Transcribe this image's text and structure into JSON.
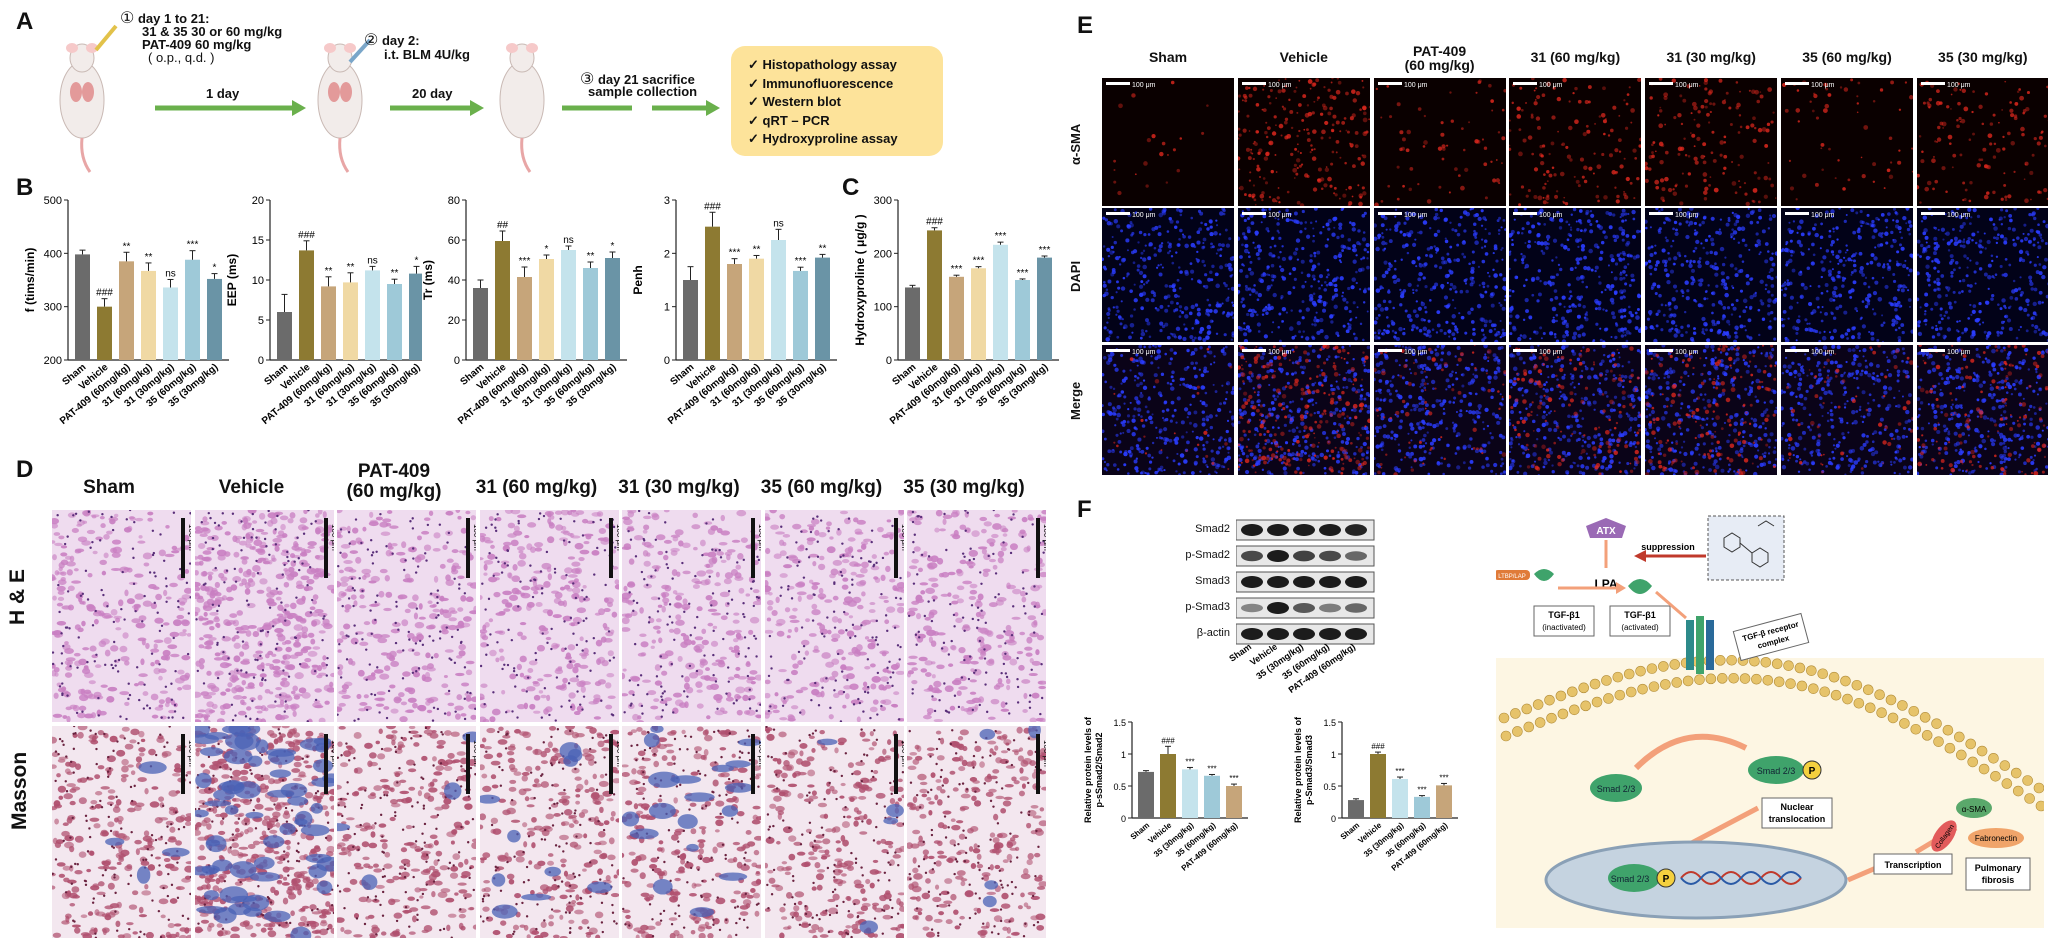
{
  "panel_letters": {
    "A": "A",
    "B": "B",
    "C": "C",
    "D": "D",
    "E": "E",
    "F": "F"
  },
  "panel_a": {
    "step1_num": "①",
    "step1_lines": [
      "day 1 to 21:",
      "31 & 35  30 or 60 mg/kg",
      "PAT-409 60 mg/kg",
      "( o.p., q.d. )"
    ],
    "step2_num": "②",
    "step2_lines": [
      "day 2:",
      "i.t. BLM 4U/kg"
    ],
    "step3_num": "③",
    "step3_lines": [
      "day 21 sacrifice",
      "sample collection"
    ],
    "arrow1": "1 day",
    "arrow2": "20 day",
    "assays": [
      "✓ Histopathology assay",
      "✓ Immunofluorescence",
      "✓ Western blot",
      "✓ qRT – PCR",
      "✓ Hydroxyproline assay"
    ],
    "colors": {
      "arrow": "#6ab04c",
      "box": "#fde39a",
      "mouse": "#f2ecea",
      "mouse_outline": "#c9b9b4",
      "tail": "#e8a6a6"
    }
  },
  "groups": [
    "Sham",
    "Vehicle",
    "PAT-409 (60mg/kg)",
    "31 (60mg/kg)",
    "31 (30mg/kg)",
    "35 (60mg/kg)",
    "35 (30mg/kg)"
  ],
  "group_colors": [
    "#6b6b6b",
    "#8d7a32",
    "#c6a57a",
    "#f0d9a4",
    "#c4e3ec",
    "#9ec9d8",
    "#6a94a6"
  ],
  "chart_data": [
    {
      "type": "bar",
      "panel": "B",
      "ylabel": "f (tims/min)",
      "ylim": [
        200,
        500
      ],
      "yticks": [
        200,
        300,
        400,
        500
      ],
      "values": [
        398,
        300,
        385,
        367,
        336,
        388,
        352
      ],
      "errors": [
        8,
        15,
        17,
        15,
        15,
        17,
        10
      ],
      "annotations": [
        "",
        "###",
        "**",
        "**",
        "ns",
        "***",
        "*"
      ]
    },
    {
      "type": "bar",
      "panel": "B",
      "ylabel": "EEP (ms)",
      "ylim": [
        0,
        20
      ],
      "yticks": [
        0,
        5,
        10,
        15,
        20
      ],
      "values": [
        6,
        13.7,
        9.2,
        9.7,
        11.2,
        9.5,
        10.8
      ],
      "errors": [
        2.2,
        1.2,
        1.2,
        1.2,
        0.5,
        0.6,
        0.9
      ],
      "annotations": [
        "",
        "###",
        "**",
        "**",
        "ns",
        "**",
        "*"
      ]
    },
    {
      "type": "bar",
      "panel": "B",
      "ylabel": "Tr (ms)",
      "ylim": [
        0,
        80
      ],
      "yticks": [
        0,
        20,
        40,
        60,
        80
      ],
      "values": [
        36,
        59.5,
        41.5,
        50.5,
        55,
        46,
        51
      ],
      "errors": [
        4,
        5,
        5,
        2,
        2,
        3,
        3
      ],
      "annotations": [
        "",
        "##",
        "***",
        "*",
        "ns",
        "**",
        "*"
      ]
    },
    {
      "type": "bar",
      "panel": "B",
      "ylabel": "Penh",
      "ylim": [
        0,
        3
      ],
      "yticks": [
        0,
        1,
        2,
        3
      ],
      "values": [
        1.5,
        2.5,
        1.8,
        1.9,
        2.25,
        1.67,
        1.92
      ],
      "errors": [
        0.25,
        0.27,
        0.1,
        0.06,
        0.2,
        0.07,
        0.06
      ],
      "annotations": [
        "",
        "###",
        "***",
        "**",
        "ns",
        "***",
        "**"
      ]
    },
    {
      "type": "bar",
      "panel": "C",
      "ylabel": "Hydroxyproline ( μg/g )",
      "ylim": [
        0,
        300
      ],
      "yticks": [
        0,
        100,
        200,
        300
      ],
      "values": [
        136,
        243,
        156,
        172,
        216,
        150,
        192
      ],
      "errors": [
        4,
        5,
        3,
        3,
        5,
        2,
        3
      ],
      "annotations": [
        "",
        "###",
        "***",
        "***",
        "***",
        "***",
        "***"
      ]
    },
    {
      "type": "bar",
      "panel": "F",
      "ylabel": "Relative protein levels of p-sSmad2/Smad2",
      "categories": [
        "Sham",
        "Vehicle",
        "35 (30mg/kg)",
        "35 (60mg/kg)",
        "PAT-409 (60mg/kg)"
      ],
      "ylim": [
        0,
        1.5
      ],
      "yticks": [
        0,
        0.5,
        1.0,
        1.5
      ],
      "values": [
        0.72,
        1.0,
        0.76,
        0.66,
        0.5
      ],
      "errors": [
        0.02,
        0.12,
        0.03,
        0.02,
        0.03
      ],
      "annotations": [
        "",
        "###",
        "***",
        "***",
        "***"
      ],
      "colors": [
        "#6b6b6b",
        "#8d7a32",
        "#c4e3ec",
        "#9ec9d8",
        "#c6a57a"
      ]
    },
    {
      "type": "bar",
      "panel": "F",
      "ylabel": "Relative protein levels of p-Smad3/Smad3",
      "categories": [
        "Sham",
        "Vehicle",
        "35 (30mg/kg)",
        "35 (60mg/kg)",
        "PAT-409 (60mg/kg)"
      ],
      "ylim": [
        0,
        1.5
      ],
      "yticks": [
        0,
        0.5,
        1.0,
        1.5
      ],
      "values": [
        0.28,
        1.0,
        0.61,
        0.33,
        0.51
      ],
      "errors": [
        0.02,
        0.03,
        0.03,
        0.02,
        0.03
      ],
      "annotations": [
        "",
        "###",
        "***",
        "***",
        "***"
      ],
      "colors": [
        "#6b6b6b",
        "#8d7a32",
        "#c4e3ec",
        "#9ec9d8",
        "#c6a57a"
      ]
    }
  ],
  "panel_d": {
    "columns": [
      "Sham",
      "Vehicle",
      "PAT-409\n(60 mg/kg)",
      "31 (60 mg/kg)",
      "31 (30 mg/kg)",
      "35 (60 mg/kg)",
      "35 (30 mg/kg)"
    ],
    "rows": [
      "H & E",
      "Masson"
    ],
    "scale": "100 μm",
    "colors": {
      "he_bg": "#efdcef",
      "he_tissue": "#c97fc2",
      "masson_bg": "#f3e7ef",
      "masson_tissue": "#b0506f",
      "fibrosis": "#4a62b5"
    }
  },
  "panel_e": {
    "columns": [
      "Sham",
      "Vehicle",
      "PAT-409\n(60 mg/kg)",
      "31 (60 mg/kg)",
      "31 (30 mg/kg)",
      "35 (60 mg/kg)",
      "35 (30 mg/kg)"
    ],
    "rows": [
      "α-SMA",
      "DAPI",
      "Merge"
    ],
    "scale": "100 μm",
    "red_intensity": [
      0.08,
      0.9,
      0.25,
      0.55,
      0.6,
      0.22,
      0.5
    ]
  },
  "panel_f": {
    "blot_labels": [
      "Smad2",
      "p-Smad2",
      "Smad3",
      "p-Smad3",
      "β-actin"
    ],
    "lane_labels": [
      "Sham",
      "Vehicle",
      "35 (30mg/kg)",
      "35 (60mg/kg)",
      "PAT-409 (60mg/kg)"
    ],
    "pathway": {
      "atx": "ATX",
      "suppression": "suppression",
      "lpa": "LPA",
      "ltbp": "LTBP/LAP",
      "tgf_inact": [
        "TGF-β1",
        "(inactivated)"
      ],
      "tgf_act": [
        "TGF-β1",
        "(activated)"
      ],
      "receptor": [
        "TGF-β receptor",
        "complex"
      ],
      "smad_free": "Smad 2/3",
      "smad_p": "Smad 2/3",
      "p": "P",
      "nuclear": [
        "Nuclear",
        "translocation"
      ],
      "transcription": "Transcription",
      "fibrosis": [
        "Pulmonary",
        "fibrosis"
      ],
      "products": [
        "α-SMA",
        "Collagen",
        "Fabronectin"
      ],
      "colors": {
        "bg": "#fdf6e3",
        "membrane": "#e6c36a",
        "smad": "#3fa36b",
        "arrow": "#f3a07a",
        "atx": "#9a6ab5",
        "nucleus": "#c5d3e0",
        "phos": "#f4d03f"
      }
    }
  }
}
